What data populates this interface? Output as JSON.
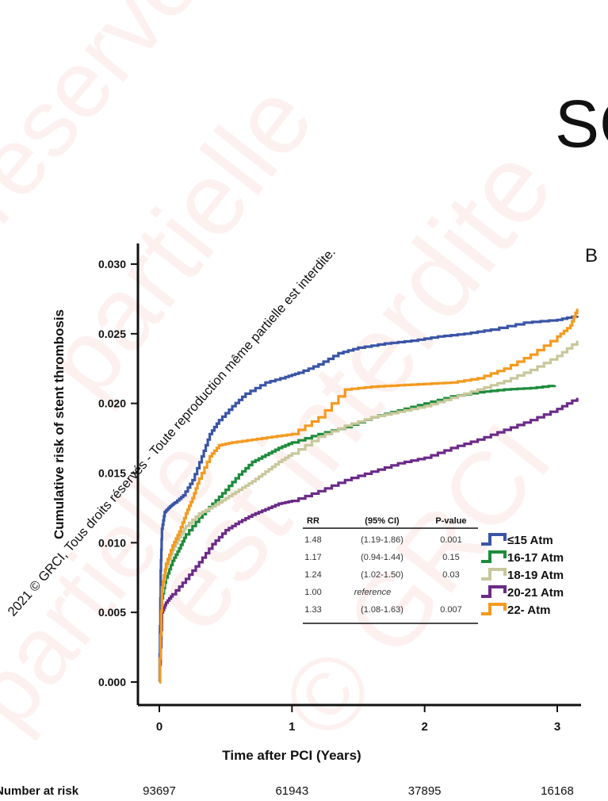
{
  "slide": {
    "title_fragment": "SC",
    "panel_letter": "B"
  },
  "watermark": {
    "line": "2021 © GRCI, Tous droits réservés - Toute reproduction même partielle est interdite.",
    "background_words": [
      "réservée",
      "partielle",
      "est interdite",
      "partielle",
      "© GRCI"
    ]
  },
  "chart_data": {
    "type": "line",
    "xlabel": "Time after PCI (Years)",
    "ylabel": "Cumulative risk of stent thrombosis",
    "xlim": [
      -0.15,
      3.2
    ],
    "ylim": [
      0,
      0.031
    ],
    "x_ticks": [
      0,
      1,
      2,
      3
    ],
    "x_tick_labels": [
      "0",
      "1",
      "2",
      "3"
    ],
    "y_ticks": [
      0.0,
      0.005,
      0.01,
      0.015,
      0.02,
      0.025,
      0.03
    ],
    "y_tick_labels": [
      "0.000",
      "0.005",
      "0.010",
      "0.015",
      "0.020",
      "0.025",
      "0.030"
    ],
    "grid": false,
    "step": true,
    "series": [
      {
        "name": "≤15 Atm",
        "color": "#3a55a6",
        "x": [
          0,
          0.01,
          0.02,
          0.04,
          0.08,
          0.12,
          0.18,
          0.25,
          0.32,
          0.38,
          0.45,
          0.55,
          0.65,
          0.8,
          0.95,
          1.05,
          1.2,
          1.35,
          1.5,
          1.7,
          1.9,
          2.1,
          2.3,
          2.5,
          2.75,
          3.0,
          3.15
        ],
        "y": [
          0.0,
          0.008,
          0.011,
          0.0122,
          0.0126,
          0.0129,
          0.0134,
          0.0145,
          0.0162,
          0.0178,
          0.0188,
          0.0198,
          0.0207,
          0.0215,
          0.0219,
          0.0222,
          0.0228,
          0.0236,
          0.024,
          0.0243,
          0.0245,
          0.0248,
          0.025,
          0.0253,
          0.0258,
          0.026,
          0.0263
        ]
      },
      {
        "name": "16-17 Atm",
        "color": "#1e8c3c",
        "x": [
          0,
          0.02,
          0.05,
          0.1,
          0.15,
          0.2,
          0.3,
          0.4,
          0.5,
          0.6,
          0.7,
          0.8,
          0.9,
          1.0,
          1.2,
          1.4,
          1.6,
          1.8,
          2.0,
          2.2,
          2.4,
          2.6,
          2.8,
          2.98
        ],
        "y": [
          0.0,
          0.006,
          0.0075,
          0.0087,
          0.0096,
          0.0106,
          0.0118,
          0.0128,
          0.0138,
          0.0149,
          0.0158,
          0.0163,
          0.0168,
          0.0172,
          0.0178,
          0.0183,
          0.019,
          0.0195,
          0.02,
          0.0205,
          0.0208,
          0.021,
          0.0211,
          0.0213
        ]
      },
      {
        "name": "18-19 Atm",
        "color": "#c8c79b",
        "x": [
          0,
          0.02,
          0.05,
          0.1,
          0.15,
          0.2,
          0.3,
          0.4,
          0.5,
          0.6,
          0.7,
          0.8,
          0.9,
          1.0,
          1.2,
          1.4,
          1.6,
          1.8,
          2.0,
          2.2,
          2.4,
          2.6,
          2.8,
          3.0,
          3.15
        ],
        "y": [
          0.0,
          0.0065,
          0.0082,
          0.0095,
          0.0104,
          0.0112,
          0.0121,
          0.0126,
          0.0132,
          0.0138,
          0.0144,
          0.0151,
          0.0158,
          0.0164,
          0.0176,
          0.0184,
          0.019,
          0.0194,
          0.0198,
          0.0204,
          0.021,
          0.0216,
          0.0224,
          0.0234,
          0.0245
        ]
      },
      {
        "name": "20-21 Atm",
        "color": "#6b2a88",
        "x": [
          0,
          0.02,
          0.05,
          0.1,
          0.2,
          0.3,
          0.4,
          0.5,
          0.6,
          0.7,
          0.8,
          0.9,
          1.0,
          1.2,
          1.4,
          1.6,
          1.8,
          2.0,
          2.2,
          2.4,
          2.6,
          2.8,
          3.0,
          3.15
        ],
        "y": [
          0.0,
          0.005,
          0.0057,
          0.0063,
          0.0074,
          0.0086,
          0.0099,
          0.0109,
          0.0115,
          0.012,
          0.0124,
          0.0128,
          0.013,
          0.0137,
          0.0145,
          0.0151,
          0.0157,
          0.0161,
          0.0168,
          0.0174,
          0.0181,
          0.0188,
          0.0196,
          0.0204
        ]
      },
      {
        "name": "22- Atm",
        "color": "#f39a1f",
        "x": [
          0,
          0.02,
          0.05,
          0.1,
          0.15,
          0.2,
          0.25,
          0.3,
          0.38,
          0.45,
          0.55,
          0.7,
          0.85,
          1.0,
          1.2,
          1.4,
          1.6,
          1.8,
          2.0,
          2.2,
          2.4,
          2.6,
          2.8,
          3.0,
          3.1,
          3.15
        ],
        "y": [
          0.0,
          0.0068,
          0.0085,
          0.0098,
          0.0108,
          0.0121,
          0.0132,
          0.0146,
          0.0162,
          0.017,
          0.0172,
          0.0174,
          0.0176,
          0.0178,
          0.019,
          0.021,
          0.0212,
          0.0213,
          0.0214,
          0.0215,
          0.0218,
          0.0225,
          0.0235,
          0.0248,
          0.0256,
          0.0268
        ]
      }
    ],
    "stats_table": {
      "headers": [
        "RR",
        "(95% CI)",
        "P-value"
      ],
      "rows": [
        [
          "1.48",
          "(1.19-1.86)",
          "0.001"
        ],
        [
          "1.17",
          "(0.94-1.44)",
          "0.15"
        ],
        [
          "1.24",
          "(1.02-1.50)",
          "0.03"
        ],
        [
          "1.00",
          "reference",
          ""
        ],
        [
          "1.33",
          "(1.08-1.63)",
          "0.007"
        ]
      ]
    },
    "number_at_risk": {
      "label": "Number at risk",
      "values": [
        "93697",
        "61943",
        "37895",
        "16168"
      ]
    }
  }
}
